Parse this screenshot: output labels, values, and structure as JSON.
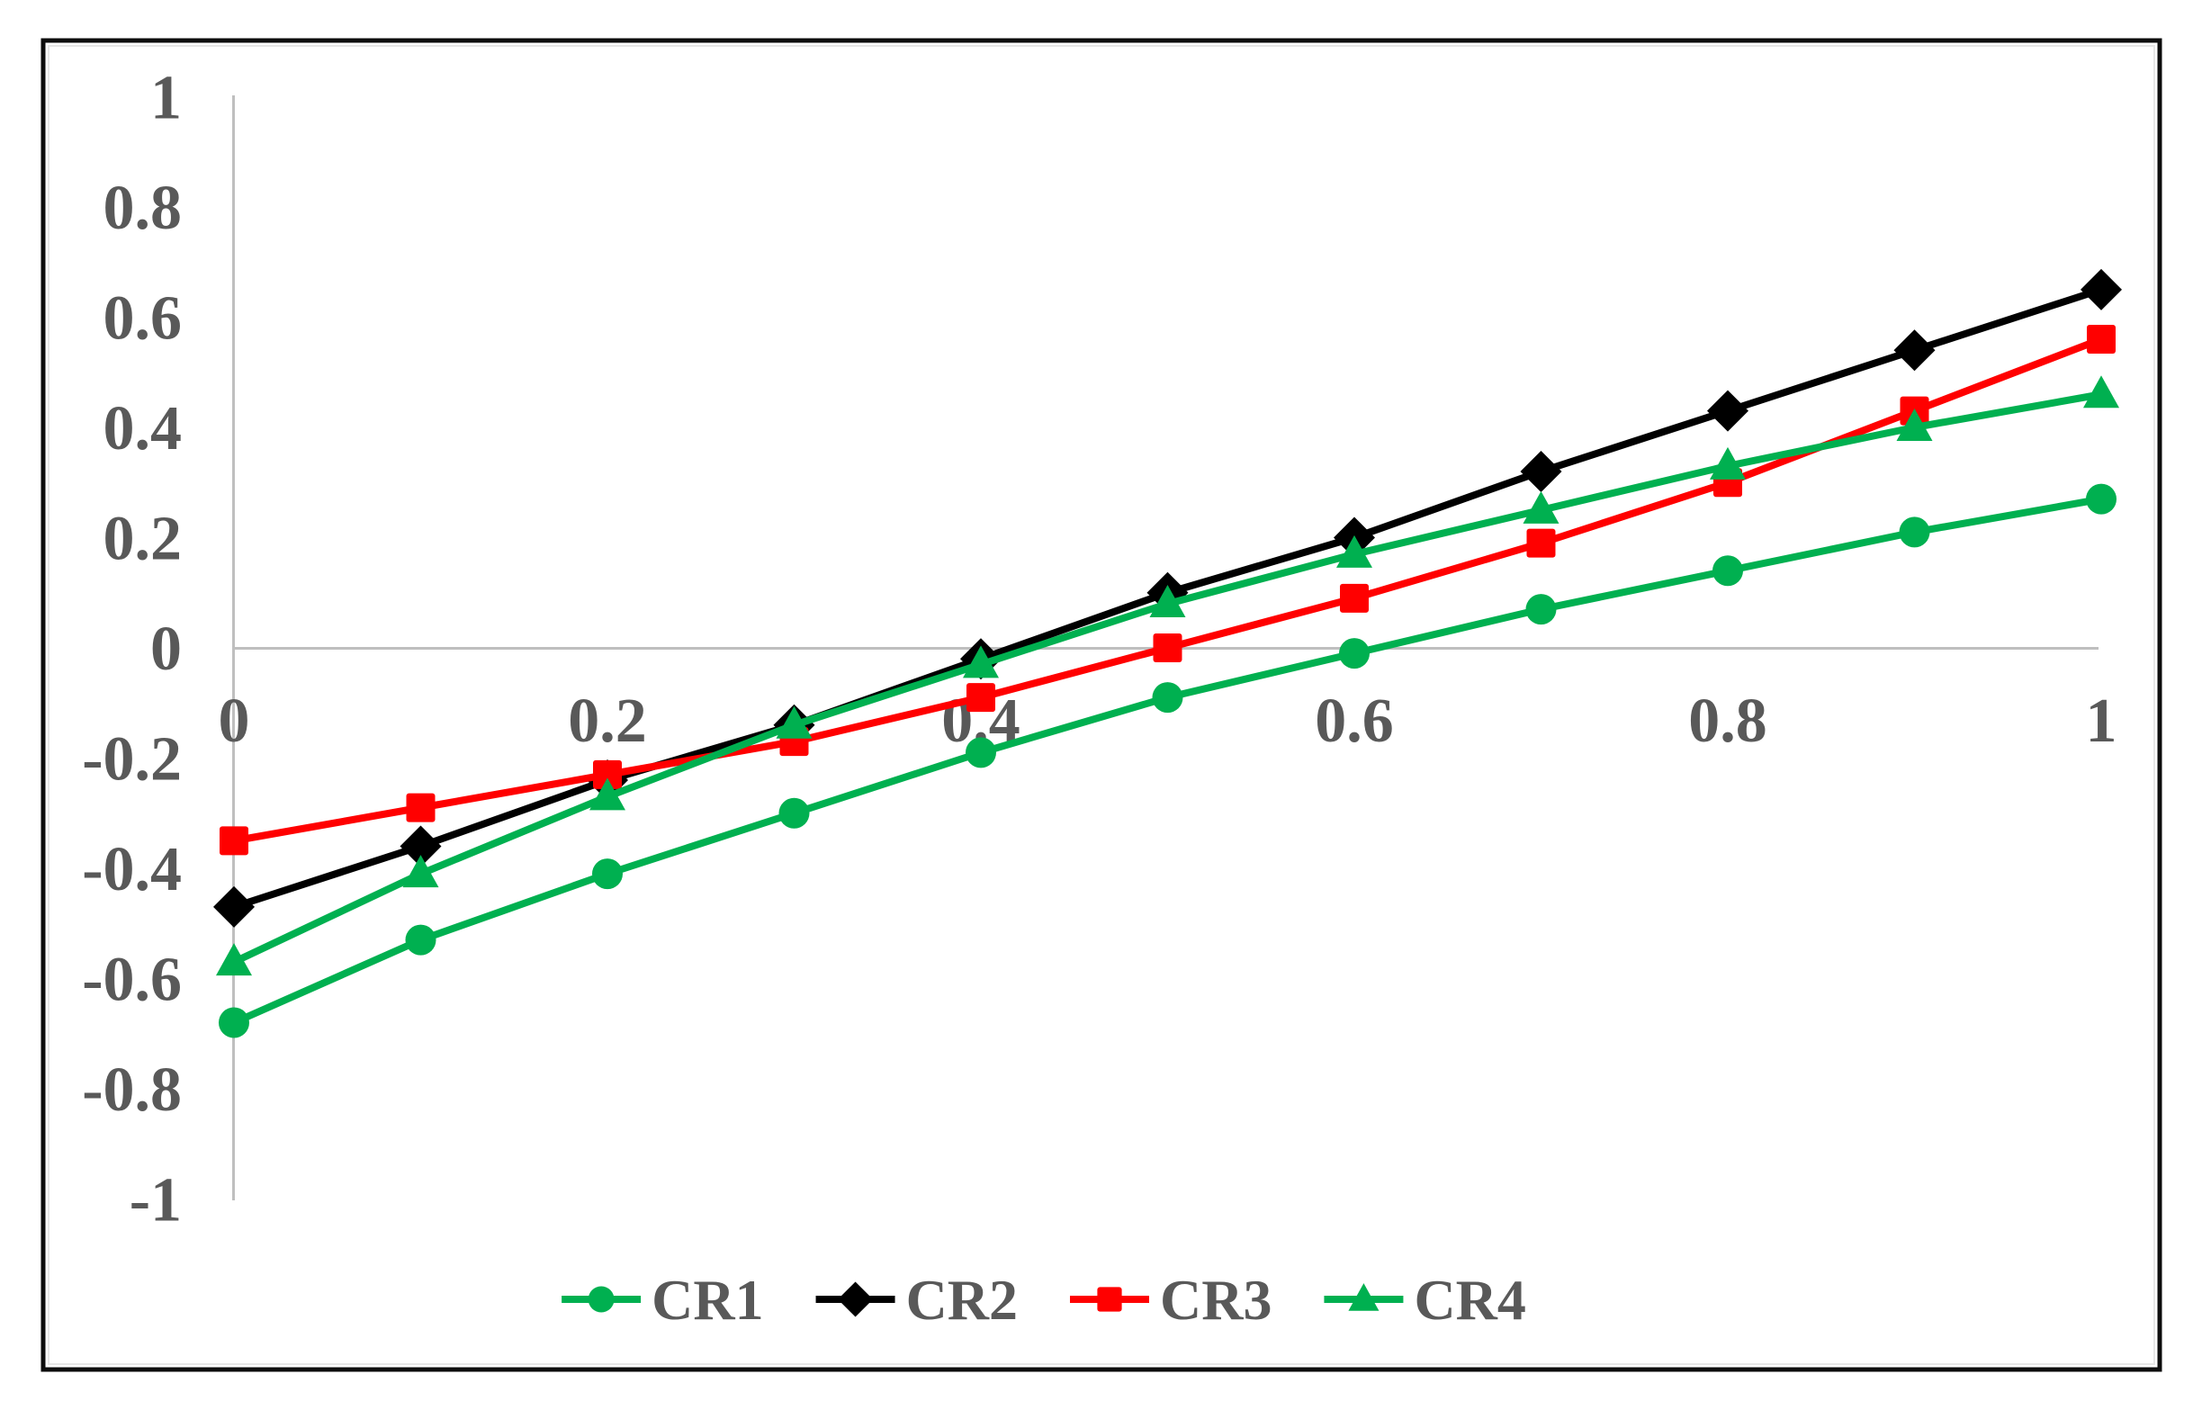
{
  "figure": {
    "background": "#FFFFFF",
    "border_color": "#0D0D0D",
    "inner_border_color": "#E6E6E6",
    "axis_line_color": "#BFBFBF",
    "tick_label_color": "#595959",
    "legend_text_color": "#595959"
  },
  "chart_data": {
    "type": "line",
    "title": "",
    "xlabel": "",
    "ylabel": "",
    "xlim": [
      0,
      1
    ],
    "ylim": [
      -1,
      1
    ],
    "grid": false,
    "legend_position": "bottom-center",
    "x": [
      0,
      0.1,
      0.2,
      0.3,
      0.4,
      0.5,
      0.6,
      0.7,
      0.8,
      0.9,
      1
    ],
    "x_tick_values": [
      0,
      0.2,
      0.4,
      0.6,
      0.8,
      1
    ],
    "x_tick_labels": [
      "0",
      "0.2",
      "0.4",
      "0.6",
      "0.8",
      "1"
    ],
    "y_tick_values": [
      1,
      0.8,
      0.6,
      0.4,
      0.2,
      0,
      -0.2,
      -0.4,
      -0.6,
      -0.8,
      -1
    ],
    "y_tick_labels": [
      "1",
      "0.8",
      "0.6",
      "0.4",
      "0.2",
      "0",
      "-0.2",
      "-0.4",
      "-0.6",
      "-0.8",
      "-1"
    ],
    "series": [
      {
        "name": "CR1",
        "color": "#00B050",
        "marker": "circle",
        "values": [
          -0.68,
          -0.53,
          -0.41,
          -0.3,
          -0.19,
          -0.09,
          -0.01,
          0.07,
          0.14,
          0.21,
          0.27
        ]
      },
      {
        "name": "CR2",
        "color": "#000000",
        "marker": "diamond",
        "values": [
          -0.47,
          -0.36,
          -0.24,
          -0.14,
          -0.02,
          0.1,
          0.2,
          0.32,
          0.43,
          0.54,
          0.65
        ]
      },
      {
        "name": "CR3",
        "color": "#FF0000",
        "marker": "square",
        "values": [
          -0.35,
          -0.29,
          -0.23,
          -0.17,
          -0.09,
          0.0,
          0.09,
          0.19,
          0.3,
          0.43,
          0.56
        ]
      },
      {
        "name": "CR4",
        "color": "#00B050",
        "marker": "triangle",
        "values": [
          -0.57,
          -0.41,
          -0.27,
          -0.14,
          -0.03,
          0.08,
          0.17,
          0.25,
          0.33,
          0.4,
          0.46
        ]
      }
    ]
  }
}
